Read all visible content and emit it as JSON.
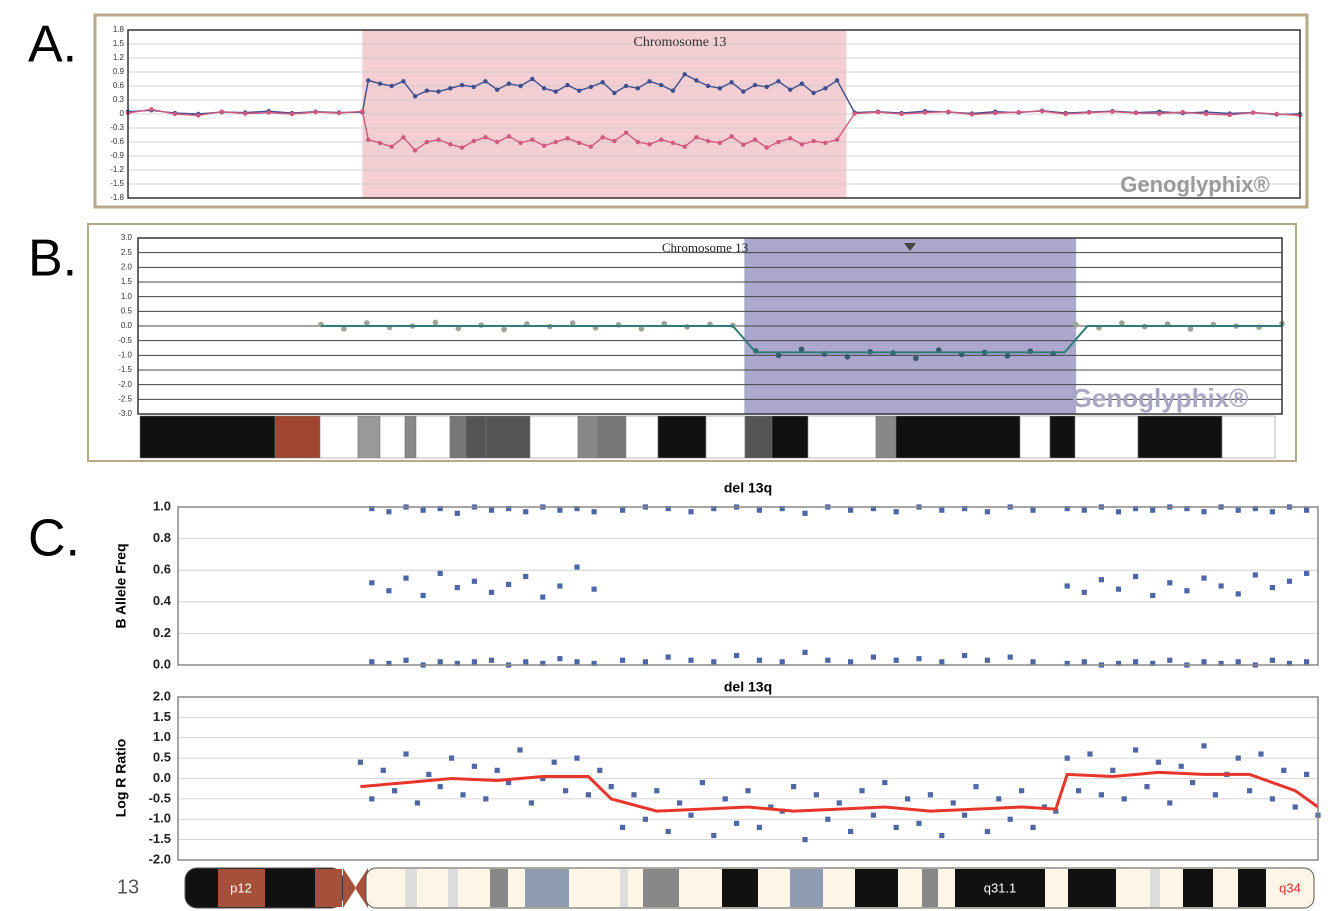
{
  "panel_labels": [
    "A.",
    "B.",
    "C."
  ],
  "chart_data": [
    {
      "type": "line",
      "title": "Chromosome 13",
      "watermark": "Genoglyphix®",
      "xlim": [
        0,
        100
      ],
      "ylim": [
        -1.8,
        1.8
      ],
      "yticks": [
        1.8,
        1.5,
        1.2,
        0.9,
        0.6,
        0.3,
        0,
        -0.3,
        -0.6,
        -0.9,
        -1.2,
        -1.5,
        -1.8
      ],
      "grid": true,
      "highlight": {
        "x": [
          20,
          61.3
        ],
        "color": "#f1c6cb"
      },
      "x": [
        0,
        2,
        4,
        6,
        8,
        10,
        12,
        14,
        16,
        18,
        20,
        20.5,
        21.5,
        22.5,
        23.5,
        24.5,
        25.5,
        26.5,
        27.5,
        28.5,
        29.5,
        30.5,
        31.5,
        32.5,
        33.5,
        34.5,
        35.5,
        36.5,
        37.5,
        38.5,
        39.5,
        40.5,
        41.5,
        42.5,
        43.5,
        44.5,
        45.5,
        46.5,
        47.5,
        48.5,
        49.5,
        50.5,
        51.5,
        52.5,
        53.5,
        54.5,
        55.5,
        56.5,
        57.5,
        58.5,
        59.5,
        60.5,
        62,
        64,
        66,
        68,
        70,
        72,
        74,
        76,
        78,
        80,
        82,
        84,
        86,
        88,
        90,
        92,
        94,
        96,
        98,
        100
      ],
      "series": [
        {
          "color": "#3d4f8f",
          "values": [
            0.05,
            0.08,
            0.02,
            0.0,
            0.04,
            0.03,
            0.06,
            0.02,
            0.05,
            0.03,
            0.04,
            0.72,
            0.65,
            0.6,
            0.7,
            0.38,
            0.5,
            0.48,
            0.55,
            0.62,
            0.58,
            0.7,
            0.52,
            0.65,
            0.6,
            0.75,
            0.55,
            0.48,
            0.62,
            0.5,
            0.58,
            0.68,
            0.45,
            0.6,
            0.55,
            0.7,
            0.62,
            0.5,
            0.85,
            0.72,
            0.6,
            0.55,
            0.68,
            0.48,
            0.62,
            0.58,
            0.7,
            0.52,
            0.65,
            0.45,
            0.55,
            0.72,
            0.03,
            0.05,
            0.02,
            0.06,
            0.04,
            0.01,
            0.05,
            0.03,
            0.07,
            0.02,
            0.04,
            0.06,
            0.03,
            0.05,
            0.02,
            0.04,
            0.01,
            0.03,
            -0.01,
            0.0
          ]
        },
        {
          "color": "#d2587f",
          "values": [
            0.02,
            0.1,
            0.0,
            -0.03,
            0.05,
            0.01,
            0.03,
            0.0,
            0.04,
            0.02,
            0.06,
            -0.55,
            -0.62,
            -0.7,
            -0.5,
            -0.78,
            -0.6,
            -0.55,
            -0.65,
            -0.72,
            -0.58,
            -0.5,
            -0.6,
            -0.48,
            -0.62,
            -0.55,
            -0.68,
            -0.6,
            -0.52,
            -0.62,
            -0.7,
            -0.5,
            -0.58,
            -0.4,
            -0.6,
            -0.65,
            -0.55,
            -0.62,
            -0.7,
            -0.5,
            -0.58,
            -0.62,
            -0.48,
            -0.66,
            -0.55,
            -0.72,
            -0.6,
            -0.52,
            -0.65,
            -0.58,
            -0.62,
            -0.55,
            0.01,
            0.04,
            0.0,
            0.03,
            0.05,
            -0.01,
            0.02,
            0.04,
            0.06,
            0.0,
            0.03,
            0.05,
            0.02,
            0.01,
            0.04,
            0.0,
            -0.02,
            0.03,
            0.0,
            -0.03
          ]
        }
      ]
    },
    {
      "type": "scatter",
      "title": "Chromosome 13",
      "watermark": "Genoglyphix®",
      "xlim": [
        0,
        100
      ],
      "ylim": [
        -3,
        3
      ],
      "yticks": [
        {
          "value": 3,
          "label": "3.0"
        },
        2.5,
        {
          "value": 2,
          "label": "2.0"
        },
        1.5,
        {
          "value": 1,
          "label": "1.0"
        },
        0.5,
        {
          "value": 0,
          "label": "0.0"
        },
        -0.5,
        {
          "value": -1,
          "label": "-1.0"
        },
        -1.5,
        {
          "value": -2,
          "label": "-2.0"
        },
        -2.5,
        {
          "value": -3,
          "label": "-3.0"
        }
      ],
      "grid": true,
      "highlight": {
        "x": [
          53,
          82
        ],
        "color": "#9e98c4"
      },
      "series": [
        {
          "color": "#9aa596",
          "x": [
            16,
            18,
            20,
            22,
            24,
            26,
            28,
            30,
            32,
            34,
            36,
            38,
            40,
            42,
            44,
            46,
            48,
            50,
            52,
            82,
            84,
            86,
            88,
            90,
            92,
            94,
            96,
            98,
            100
          ],
          "values": [
            0.05,
            -0.1,
            0.1,
            -0.05,
            0.0,
            0.12,
            -0.08,
            0.03,
            -0.12,
            0.07,
            -0.02,
            0.1,
            -0.06,
            0.04,
            -0.1,
            0.08,
            -0.03,
            0.06,
            0.02,
            0.04,
            -0.06,
            0.1,
            -0.02,
            0.07,
            -0.1,
            0.05,
            0.0,
            -0.04,
            0.08
          ]
        },
        {
          "color": "#33596a",
          "x": [
            54,
            56,
            58,
            60,
            62,
            64,
            66,
            68,
            70,
            72,
            74,
            76,
            78,
            80
          ],
          "values": [
            -0.85,
            -1.0,
            -0.8,
            -0.95,
            -1.05,
            -0.88,
            -0.92,
            -1.1,
            -0.82,
            -0.97,
            -0.9,
            -1.02,
            -0.86,
            -0.94
          ]
        },
        {
          "type": "line",
          "color": "#2e7d7a",
          "x": [
            16,
            52,
            54,
            81,
            83,
            100
          ],
          "values": [
            0,
            0,
            -0.9,
            -0.9,
            0,
            0
          ]
        }
      ]
    },
    {
      "type": "scatter",
      "title": "del 13q",
      "ylabel": "B Allele Freq",
      "xlim": [
        0,
        100
      ],
      "ylim": [
        0,
        1
      ],
      "yticks": [
        {
          "value": 1,
          "label": "1.0"
        },
        0.8,
        0.6,
        0.4,
        0.2,
        {
          "value": 0,
          "label": "0.0"
        }
      ],
      "grid": true,
      "series": [
        {
          "color": "#4d66a8",
          "x": [
            17,
            17,
            17,
            18.5,
            18.5,
            18.5,
            20,
            20,
            20,
            21.5,
            21.5,
            21.5,
            23,
            23,
            23,
            24.5,
            24.5,
            24.5,
            26,
            26,
            26,
            27.5,
            27.5,
            27.5,
            29,
            29,
            29,
            30.5,
            30.5,
            30.5,
            32,
            32,
            32,
            33.5,
            33.5,
            33.5,
            35,
            35,
            35,
            36.5,
            36.5,
            36.5,
            39,
            39,
            41,
            41,
            43,
            43,
            45,
            45,
            47,
            47,
            49,
            49,
            51,
            51,
            53,
            53,
            55,
            55,
            57,
            57,
            59,
            59,
            61,
            61,
            63,
            63,
            65,
            65,
            67,
            67,
            69,
            69,
            71,
            71,
            73,
            73,
            75,
            75,
            78,
            78,
            78,
            79.5,
            79.5,
            79.5,
            81,
            81,
            81,
            82.5,
            82.5,
            82.5,
            84,
            84,
            84,
            85.5,
            85.5,
            85.5,
            87,
            87,
            87,
            88.5,
            88.5,
            88.5,
            90,
            90,
            90,
            91.5,
            91.5,
            91.5,
            93,
            93,
            93,
            94.5,
            94.5,
            94.5,
            96,
            96,
            96,
            97.5,
            97.5,
            97.5,
            99,
            99,
            99
          ],
          "values": [
            0.99,
            0.52,
            0.02,
            0.97,
            0.47,
            0.01,
            1.0,
            0.55,
            0.03,
            0.98,
            0.44,
            0.0,
            0.99,
            0.58,
            0.02,
            0.96,
            0.49,
            0.01,
            1.0,
            0.53,
            0.02,
            0.98,
            0.46,
            0.03,
            0.99,
            0.51,
            0.0,
            0.97,
            0.56,
            0.02,
            1.0,
            0.43,
            0.01,
            0.98,
            0.5,
            0.04,
            0.99,
            0.62,
            0.02,
            0.97,
            0.48,
            0.01,
            0.98,
            0.03,
            1.0,
            0.02,
            0.99,
            0.05,
            0.97,
            0.03,
            0.99,
            0.02,
            1.0,
            0.06,
            0.98,
            0.03,
            0.99,
            0.02,
            0.96,
            0.08,
            1.0,
            0.03,
            0.98,
            0.02,
            0.99,
            0.05,
            0.97,
            0.03,
            1.0,
            0.04,
            0.98,
            0.02,
            0.99,
            0.06,
            0.97,
            0.03,
            1.0,
            0.05,
            0.98,
            0.02,
            0.99,
            0.5,
            0.01,
            0.98,
            0.46,
            0.02,
            1.0,
            0.54,
            0.0,
            0.97,
            0.48,
            0.01,
            0.99,
            0.56,
            0.02,
            0.98,
            0.44,
            0.01,
            1.0,
            0.52,
            0.03,
            0.99,
            0.47,
            0.0,
            0.97,
            0.55,
            0.02,
            1.0,
            0.5,
            0.01,
            0.98,
            0.45,
            0.02,
            0.99,
            0.57,
            0.0,
            0.97,
            0.49,
            0.03,
            1.0,
            0.53,
            0.01,
            0.98,
            0.58,
            0.02
          ]
        }
      ]
    },
    {
      "type": "scatter",
      "title": "del 13q",
      "ylabel": "Log R Ratio",
      "xlim": [
        0,
        100
      ],
      "ylim": [
        -2,
        2
      ],
      "yticks": [
        {
          "value": 2,
          "label": "2.0"
        },
        1.5,
        {
          "value": 1,
          "label": "1.0"
        },
        0.5,
        {
          "value": 0,
          "label": "0.0"
        },
        -0.5,
        {
          "value": -1,
          "label": "-1.0"
        },
        -1.5,
        {
          "value": -2,
          "label": "-2.0"
        }
      ],
      "grid": true,
      "series": [
        {
          "color": "#5067a6",
          "x": [
            16,
            17,
            18,
            19,
            20,
            21,
            22,
            23,
            24,
            25,
            26,
            27,
            28,
            29,
            30,
            31,
            32,
            33,
            34,
            35,
            36,
            37,
            38,
            39,
            40,
            41,
            42,
            43,
            44,
            45,
            46,
            47,
            48,
            49,
            50,
            51,
            52,
            53,
            54,
            55,
            56,
            57,
            58,
            59,
            60,
            61,
            62,
            63,
            64,
            65,
            66,
            67,
            68,
            69,
            70,
            71,
            72,
            73,
            74,
            75,
            76,
            77,
            78,
            79,
            80,
            81,
            82,
            83,
            84,
            85,
            86,
            87,
            88,
            89,
            90,
            91,
            92,
            93,
            94,
            95,
            96,
            97,
            98,
            99,
            100
          ],
          "values": [
            0.4,
            -0.5,
            0.2,
            -0.3,
            0.6,
            -0.6,
            0.1,
            -0.2,
            0.5,
            -0.4,
            0.3,
            -0.5,
            0.2,
            -0.1,
            0.7,
            -0.6,
            0.0,
            0.4,
            -0.3,
            0.5,
            -0.4,
            0.2,
            -0.2,
            -1.2,
            -0.4,
            -1.0,
            -0.3,
            -1.3,
            -0.6,
            -0.9,
            -0.1,
            -1.4,
            -0.5,
            -1.1,
            -0.3,
            -1.2,
            -0.7,
            -0.8,
            -0.2,
            -1.5,
            -0.4,
            -1.0,
            -0.6,
            -1.3,
            -0.3,
            -0.9,
            -0.1,
            -1.2,
            -0.5,
            -1.1,
            -0.4,
            -1.4,
            -0.6,
            -0.9,
            -0.2,
            -1.3,
            -0.5,
            -1.0,
            -0.3,
            -1.2,
            -0.7,
            -0.8,
            0.5,
            -0.3,
            0.6,
            -0.4,
            0.2,
            -0.5,
            0.7,
            -0.2,
            0.4,
            -0.6,
            0.3,
            -0.1,
            0.8,
            -0.4,
            0.1,
            0.5,
            -0.3,
            0.6,
            -0.5,
            0.2,
            -0.7,
            0.1,
            -0.9
          ]
        },
        {
          "type": "line",
          "color": "#e8352a",
          "x": [
            16,
            20,
            24,
            28,
            32,
            36,
            38,
            42,
            46,
            50,
            54,
            58,
            62,
            66,
            70,
            74,
            77,
            78,
            82,
            86,
            90,
            94,
            98,
            100
          ],
          "values": [
            -0.2,
            -0.1,
            0.0,
            -0.05,
            0.05,
            0.05,
            -0.5,
            -0.8,
            -0.75,
            -0.7,
            -0.8,
            -0.75,
            -0.7,
            -0.8,
            -0.75,
            -0.7,
            -0.75,
            0.1,
            0.05,
            0.15,
            0.1,
            0.1,
            -0.3,
            -0.7
          ]
        }
      ]
    }
  ],
  "ideogram": {
    "chromosome": "13",
    "bands": [
      "p12",
      "q31.1",
      "q34"
    ]
  }
}
